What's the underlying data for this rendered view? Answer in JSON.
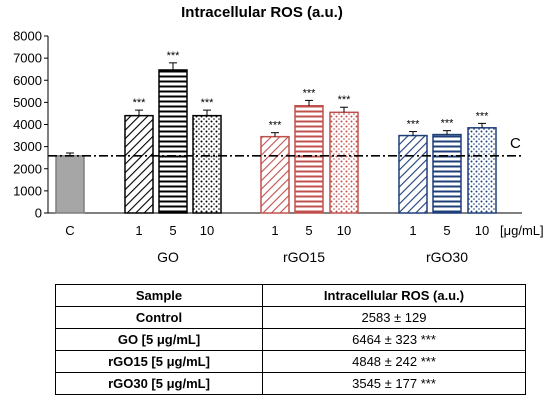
{
  "chart_data": {
    "type": "bar",
    "title": "Intracellular ROS (a.u.)",
    "ylim": [
      0,
      8000
    ],
    "yticks": [
      "0",
      "1000",
      "2000",
      "3000",
      "4000",
      "5000",
      "6000",
      "7000",
      "8000"
    ],
    "units_label": "[μg/mL]",
    "reference_line": {
      "label": "C",
      "value": 2583
    },
    "bars": [
      {
        "id": "C-ctrl",
        "dose": "C",
        "value": 2583,
        "error": 129,
        "sig": "",
        "fill": "#a6a6a6",
        "pattern": "solid"
      },
      {
        "id": "GO-1",
        "dose": "1",
        "value": 4400,
        "error": 250,
        "sig": "***",
        "fill": "#000000",
        "pattern": "diag"
      },
      {
        "id": "GO-5",
        "dose": "5",
        "value": 6464,
        "error": 323,
        "sig": "***",
        "fill": "#000000",
        "pattern": "horiz"
      },
      {
        "id": "GO-10",
        "dose": "10",
        "value": 4400,
        "error": 250,
        "sig": "***",
        "fill": "#000000",
        "pattern": "dots"
      },
      {
        "id": "rGO15-1",
        "dose": "1",
        "value": 3450,
        "error": 180,
        "sig": "***",
        "fill": "#c0504d",
        "pattern": "diag"
      },
      {
        "id": "rGO15-5",
        "dose": "5",
        "value": 4848,
        "error": 242,
        "sig": "***",
        "fill": "#c0504d",
        "pattern": "horiz"
      },
      {
        "id": "rGO15-10",
        "dose": "10",
        "value": 4550,
        "error": 230,
        "sig": "***",
        "fill": "#c0504d",
        "pattern": "dots"
      },
      {
        "id": "rGO30-1",
        "dose": "1",
        "value": 3500,
        "error": 180,
        "sig": "***",
        "fill": "#1f3f7a",
        "pattern": "diag"
      },
      {
        "id": "rGO30-5",
        "dose": "5",
        "value": 3545,
        "error": 177,
        "sig": "***",
        "fill": "#1f3f7a",
        "pattern": "horiz"
      },
      {
        "id": "rGO30-10",
        "dose": "10",
        "value": 3850,
        "error": 200,
        "sig": "***",
        "fill": "#1f3f7a",
        "pattern": "dots"
      }
    ],
    "groups": [
      "GO",
      "rGO15",
      "rGO30"
    ]
  },
  "table": {
    "headers": [
      "Sample",
      "Intracellular ROS (a.u.)"
    ],
    "rows": [
      {
        "sample": "Control",
        "value": "2583 ± 129",
        "sig": ""
      },
      {
        "sample": "GO [5 μg/mL]",
        "value": "6464 ± 323",
        "sig": "***"
      },
      {
        "sample": "rGO15 [5 μg/mL]",
        "value": "4848 ± 242",
        "sig": "***"
      },
      {
        "sample": "rGO30 [5 μg/mL]",
        "value": "3545 ± 177",
        "sig": "***"
      }
    ]
  }
}
